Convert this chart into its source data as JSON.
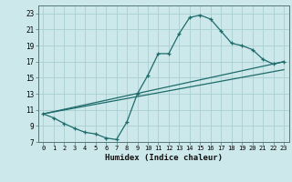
{
  "xlabel": "Humidex (Indice chaleur)",
  "background_color": "#cce8ea",
  "grid_color": "#aacfd2",
  "line_color": "#1e6b6b",
  "xlim": [
    -0.5,
    23.5
  ],
  "ylim": [
    7,
    24
  ],
  "yticks": [
    7,
    9,
    11,
    13,
    15,
    17,
    19,
    21,
    23
  ],
  "xticks": [
    0,
    1,
    2,
    3,
    4,
    5,
    6,
    7,
    8,
    9,
    10,
    11,
    12,
    13,
    14,
    15,
    16,
    17,
    18,
    19,
    20,
    21,
    22,
    23
  ],
  "line1_x": [
    0,
    1,
    2,
    3,
    4,
    5,
    6,
    7,
    8,
    9,
    10,
    11,
    12,
    13,
    14,
    15,
    16,
    17,
    18,
    19,
    20,
    21,
    22,
    23
  ],
  "line1_y": [
    10.5,
    10.0,
    9.3,
    8.7,
    8.2,
    8.0,
    7.5,
    7.3,
    9.5,
    13.0,
    15.3,
    18.0,
    18.0,
    20.5,
    22.5,
    22.8,
    22.3,
    20.8,
    19.3,
    19.0,
    18.5,
    17.3,
    16.7,
    17.0
  ],
  "line2_x": [
    0,
    23
  ],
  "line2_y": [
    10.5,
    17.0
  ],
  "line3_x": [
    0,
    23
  ],
  "line3_y": [
    10.5,
    16.0
  ]
}
